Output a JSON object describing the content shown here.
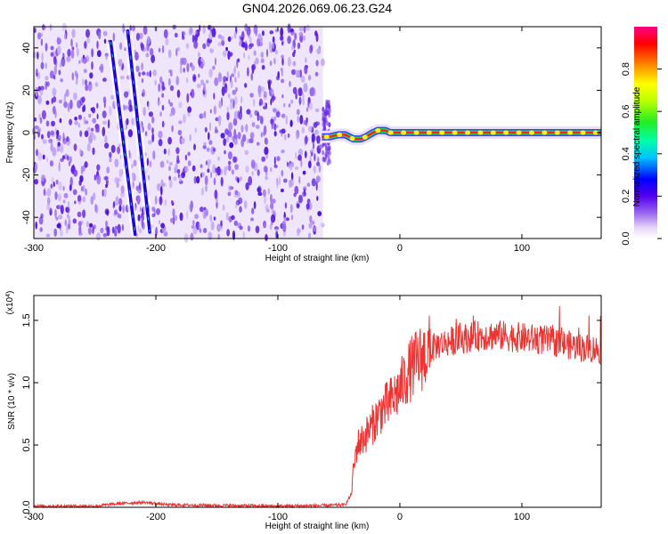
{
  "title": "GN04.2026.069.06.23.G24",
  "chart_data": [
    {
      "type": "heatmap",
      "xlabel": "Height of straight line (km)",
      "ylabel": "Frequency (Hz)",
      "xlim": [
        -300,
        165
      ],
      "ylim": [
        -50,
        50
      ],
      "x_ticks": [
        -300,
        -200,
        -100,
        0,
        100
      ],
      "y_ticks": [
        -40,
        -20,
        0,
        20,
        40
      ],
      "noise_region_x": [
        -300,
        -63
      ],
      "track": {
        "x": [
          -64,
          -58,
          -50,
          -45,
          -38,
          -32,
          -28,
          -22,
          -18,
          -12,
          -8,
          -3,
          0,
          20,
          50,
          100,
          140,
          165
        ],
        "y": [
          -2,
          -2,
          -1,
          -1,
          -3,
          -3,
          -2,
          0,
          1,
          1,
          0,
          0,
          0,
          0,
          0,
          0,
          0,
          0
        ]
      },
      "streaks": [
        {
          "x": [
            -237,
            -217
          ],
          "y": [
            43,
            -48
          ]
        },
        {
          "x": [
            -223,
            -205
          ],
          "y": [
            48,
            -47
          ]
        }
      ],
      "colorbar": {
        "label": "Normalized spectral amplitude",
        "range": [
          0,
          1
        ],
        "ticks": [
          "0.0",
          "0.2",
          "0.4",
          "0.6",
          "0.8"
        ]
      }
    },
    {
      "type": "line",
      "xlabel": "Height of straight line (km)",
      "ylabel": "SNR (10 * v/v)",
      "multiplier": "(x10",
      "multiplier_exp": "4",
      "multiplier_close": ")",
      "xlim": [
        -300,
        165
      ],
      "ylim": [
        0,
        1.7
      ],
      "x_ticks": [
        -300,
        -200,
        -100,
        0,
        100
      ],
      "y_ticks": [
        "0.0",
        "0.5",
        "1.0",
        "1.5"
      ],
      "color": "#ee3333",
      "series": [
        {
          "x": [
            -300,
            -250,
            -230,
            -210,
            -190,
            -150,
            -100,
            -60,
            -45,
            -40,
            -38,
            -35,
            -30,
            -25,
            -20,
            -15,
            -10,
            -5,
            0,
            5,
            10,
            15,
            20,
            25,
            30,
            40,
            50,
            60,
            70,
            80,
            90,
            100,
            110,
            120,
            130,
            140,
            150,
            160,
            165
          ],
          "values": [
            0.01,
            0.01,
            0.03,
            0.04,
            0.02,
            0.015,
            0.01,
            0.015,
            0.02,
            0.1,
            0.3,
            0.5,
            0.55,
            0.62,
            0.7,
            0.78,
            0.82,
            0.88,
            0.95,
            1.05,
            1.12,
            1.18,
            1.22,
            1.26,
            1.3,
            1.33,
            1.35,
            1.37,
            1.38,
            1.38,
            1.37,
            1.36,
            1.35,
            1.34,
            1.32,
            1.3,
            1.28,
            1.27,
            1.26
          ]
        }
      ]
    }
  ]
}
